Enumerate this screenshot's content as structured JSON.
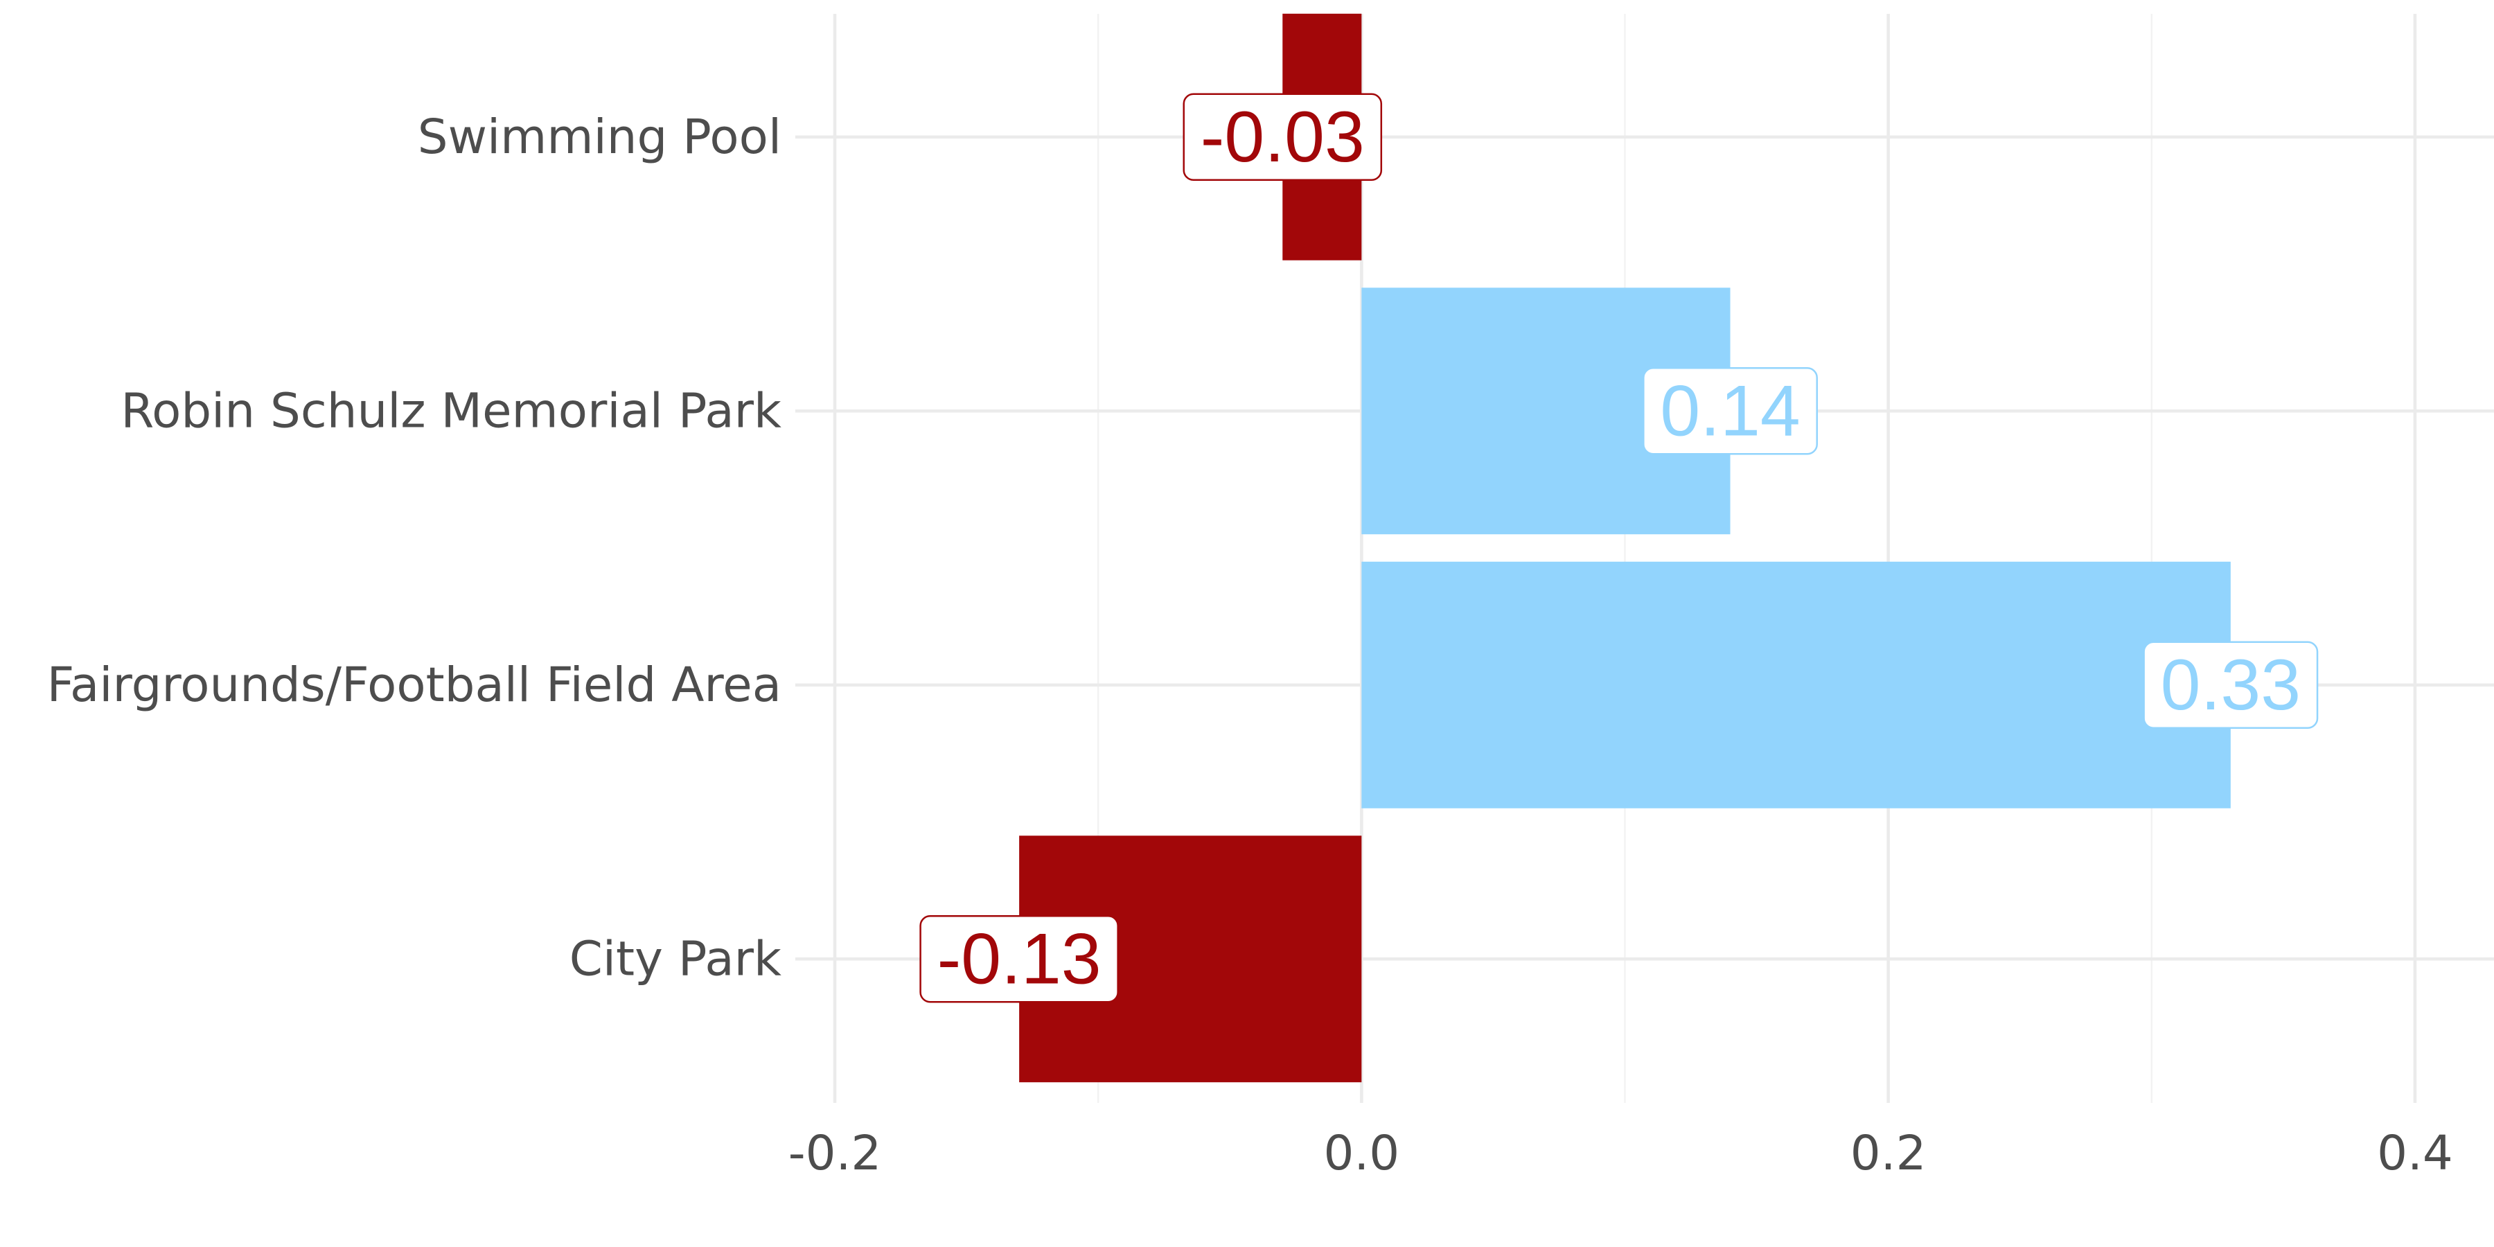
{
  "chart_data": {
    "type": "bar",
    "orientation": "horizontal",
    "categories": [
      "Swimming Pool",
      "Robin Schulz Memorial Park",
      "Fairgrounds/Football Field Area",
      "City Park"
    ],
    "values": [
      -0.03,
      0.14,
      0.33,
      -0.13
    ],
    "data_labels": [
      "-0.03",
      "0.14",
      "0.33",
      "-0.13"
    ],
    "xlim": [
      -0.215,
      0.43
    ],
    "xticks": [
      -0.2,
      0.0,
      0.2,
      0.4
    ],
    "xtick_labels": [
      "-0.2",
      "0.0",
      "0.2",
      "0.4"
    ],
    "colors": {
      "positive": "#92d4fd",
      "negative": "#a20709",
      "grid": "#ebebeb",
      "text": "#4d4d4d"
    },
    "grid": true,
    "legend": "none",
    "title": "",
    "xlabel": "",
    "ylabel": ""
  }
}
